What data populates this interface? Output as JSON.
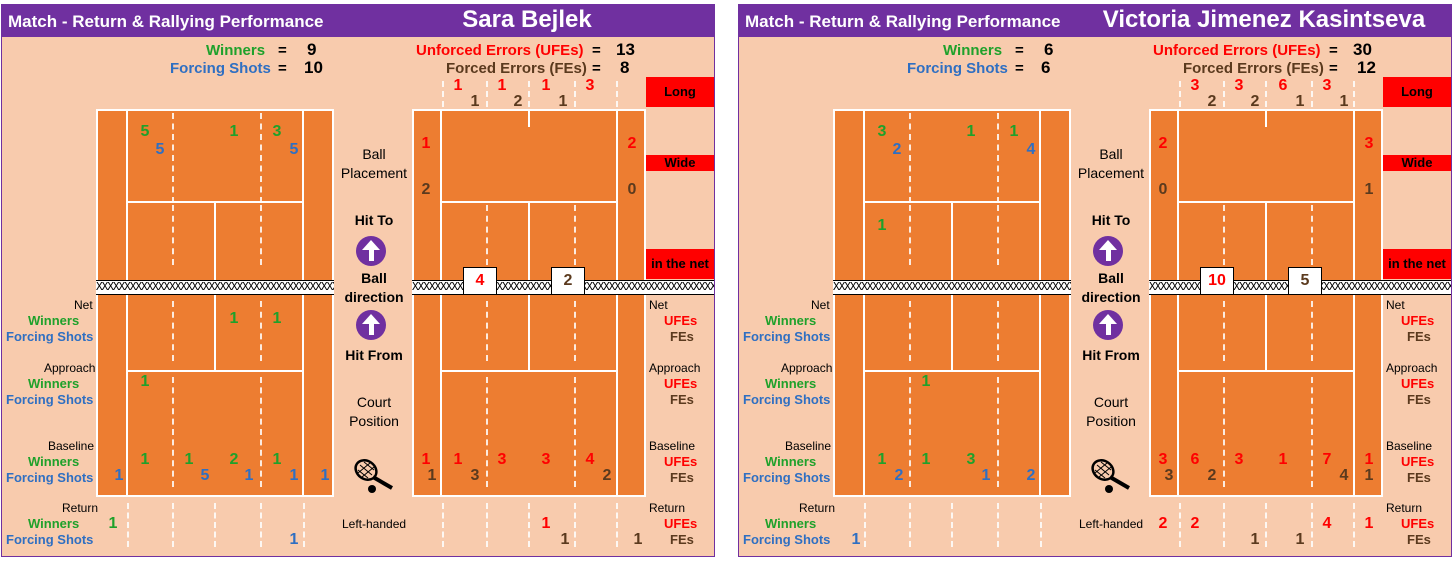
{
  "panels": [
    {
      "title": "Match - Return & Rallying Performance",
      "player": "Sara Bejlek",
      "winners_label": "Winners",
      "winners_eq": "=",
      "winners": "9",
      "forcing_label": "Forcing Shots",
      "forcing_eq": "=",
      "forcing": "10",
      "ufe_label": "Unforced Errors (UFEs)",
      "ufe_eq": "=",
      "ufe": "13",
      "fe_label": "Forced Errors (FEs)",
      "fe_eq": "=",
      "fe": "8",
      "err_top": [
        [
          "1",
          "red"
        ],
        [
          "1",
          "brown"
        ],
        [
          "1",
          "red"
        ],
        [
          "2",
          "brown"
        ],
        [
          "1",
          "red"
        ],
        [
          "1",
          "brown"
        ],
        [
          "3",
          "red"
        ]
      ],
      "wide_left": [
        [
          "1",
          "red"
        ],
        [
          "2",
          "brown"
        ]
      ],
      "wide_right": [
        [
          "2",
          "red"
        ],
        [
          "0",
          "brown"
        ]
      ],
      "net_ufe": "4",
      "net_fe": "2",
      "left_hand": "Left-handed",
      "hit_top1": [
        [
          "5",
          "green"
        ],
        [
          "1",
          "green"
        ],
        [
          "3",
          "green"
        ]
      ],
      "hit_top2": [
        [
          "5",
          "blue"
        ],
        [
          "5",
          "blue"
        ]
      ],
      "hit_mid": [],
      "hit_net_row": [
        [
          "1",
          "green"
        ],
        [
          "1",
          "green"
        ]
      ],
      "hit_app": [
        [
          "1",
          "green"
        ]
      ],
      "hit_base_w": [
        [
          "1",
          "green"
        ],
        [
          "1",
          "green"
        ],
        [
          "2",
          "green"
        ],
        [
          "1",
          "green"
        ]
      ],
      "hit_base_f": [
        [
          "1",
          "blue"
        ],
        [
          "5",
          "blue"
        ],
        [
          "1",
          "blue"
        ],
        [
          "1",
          "blue"
        ],
        [
          "1",
          "blue"
        ]
      ],
      "hit_ret_w": [
        [
          "1",
          "green"
        ]
      ],
      "hit_ret_f": [
        [
          "1",
          "blue"
        ]
      ],
      "err_base": [
        [
          "1",
          "red"
        ],
        [
          "1",
          "brown"
        ],
        [
          "1",
          "red"
        ],
        [
          "3",
          "brown"
        ],
        [
          "3",
          "red"
        ],
        [
          "3",
          "red"
        ],
        [
          "4",
          "red"
        ],
        [
          "2",
          "brown"
        ]
      ],
      "err_ret": [
        [
          "1",
          "red"
        ],
        [
          "1",
          "brown"
        ],
        [
          "1",
          "brown"
        ]
      ]
    },
    {
      "title": "Match - Return & Rallying Performance",
      "player": "Victoria Jimenez Kasintseva",
      "winners_label": "Winners",
      "winners_eq": "=",
      "winners": "6",
      "forcing_label": "Forcing Shots",
      "forcing_eq": "=",
      "forcing": "6",
      "ufe_label": "Unforced Errors (UFEs)",
      "ufe_eq": "=",
      "ufe": "30",
      "fe_label": "Forced Errors (FEs)",
      "fe_eq": "=",
      "fe": "12",
      "err_top": [
        [
          "3",
          "red"
        ],
        [
          "2",
          "brown"
        ],
        [
          "3",
          "red"
        ],
        [
          "2",
          "brown"
        ],
        [
          "6",
          "red"
        ],
        [
          "1",
          "brown"
        ],
        [
          "3",
          "red"
        ],
        [
          "1",
          "brown"
        ]
      ],
      "wide_left": [
        [
          "2",
          "red"
        ],
        [
          "0",
          "brown"
        ]
      ],
      "wide_right": [
        [
          "3",
          "red"
        ],
        [
          "1",
          "brown"
        ]
      ],
      "net_ufe": "10",
      "net_fe": "5",
      "left_hand": "Left-handed",
      "hit_top1": [
        [
          "3",
          "green"
        ],
        [
          "1",
          "green"
        ],
        [
          "1",
          "green"
        ]
      ],
      "hit_top2": [
        [
          "2",
          "blue"
        ],
        [
          "4",
          "blue"
        ]
      ],
      "hit_mid": [
        [
          "1",
          "green"
        ]
      ],
      "hit_net_row": [],
      "hit_app": [
        [
          "1",
          "green"
        ]
      ],
      "hit_base_w": [
        [
          "1",
          "green"
        ],
        [
          "1",
          "green"
        ],
        [
          "3",
          "green"
        ]
      ],
      "hit_base_f": [
        [
          "2",
          "blue"
        ],
        [
          "1",
          "blue"
        ],
        [
          "2",
          "blue"
        ]
      ],
      "hit_ret_w": [],
      "hit_ret_f": [
        [
          "1",
          "blue"
        ]
      ],
      "err_base": [
        [
          "3",
          "red"
        ],
        [
          "3",
          "brown"
        ],
        [
          "6",
          "red"
        ],
        [
          "2",
          "brown"
        ],
        [
          "3",
          "red"
        ],
        [
          "1",
          "red"
        ],
        [
          "7",
          "red"
        ],
        [
          "4",
          "brown"
        ],
        [
          "1",
          "red"
        ],
        [
          "1",
          "brown"
        ]
      ],
      "err_ret": [
        [
          "2",
          "red"
        ],
        [
          "2",
          "red"
        ],
        [
          "1",
          "brown"
        ],
        [
          "1",
          "brown"
        ],
        [
          "4",
          "red"
        ],
        [
          "1",
          "red"
        ]
      ]
    }
  ],
  "labels": {
    "long": "Long",
    "wide": "Wide",
    "in_net": "in the net",
    "ball_placement": [
      "Ball",
      "Placement"
    ],
    "hit_to": "Hit To",
    "ball_direction": [
      "Ball",
      "direction"
    ],
    "hit_from": "Hit From",
    "court_position": [
      "Court",
      "Position"
    ],
    "net": "Net",
    "approach": "Approach",
    "baseline": "Baseline",
    "return": "Return",
    "winners": "Winners",
    "forcing": "Forcing Shots",
    "ufes": "UFEs",
    "fes": "FEs"
  },
  "net_text": "XXXXXXXXXXXXXXXXXXXXXXXXXXXXXXXXXXXXXXXXXXXXXXXXXXXXXXXXXXXXXXXXXXXXXXXXXXXX",
  "colors": {
    "header": "#7030a0",
    "panel_bg": "#f8cbad",
    "court": "#ed7d31",
    "winners": "#1fa12b",
    "forcing": "#2f6fc2",
    "ufe": "#ff0000",
    "fe": "#5b3a1e"
  }
}
